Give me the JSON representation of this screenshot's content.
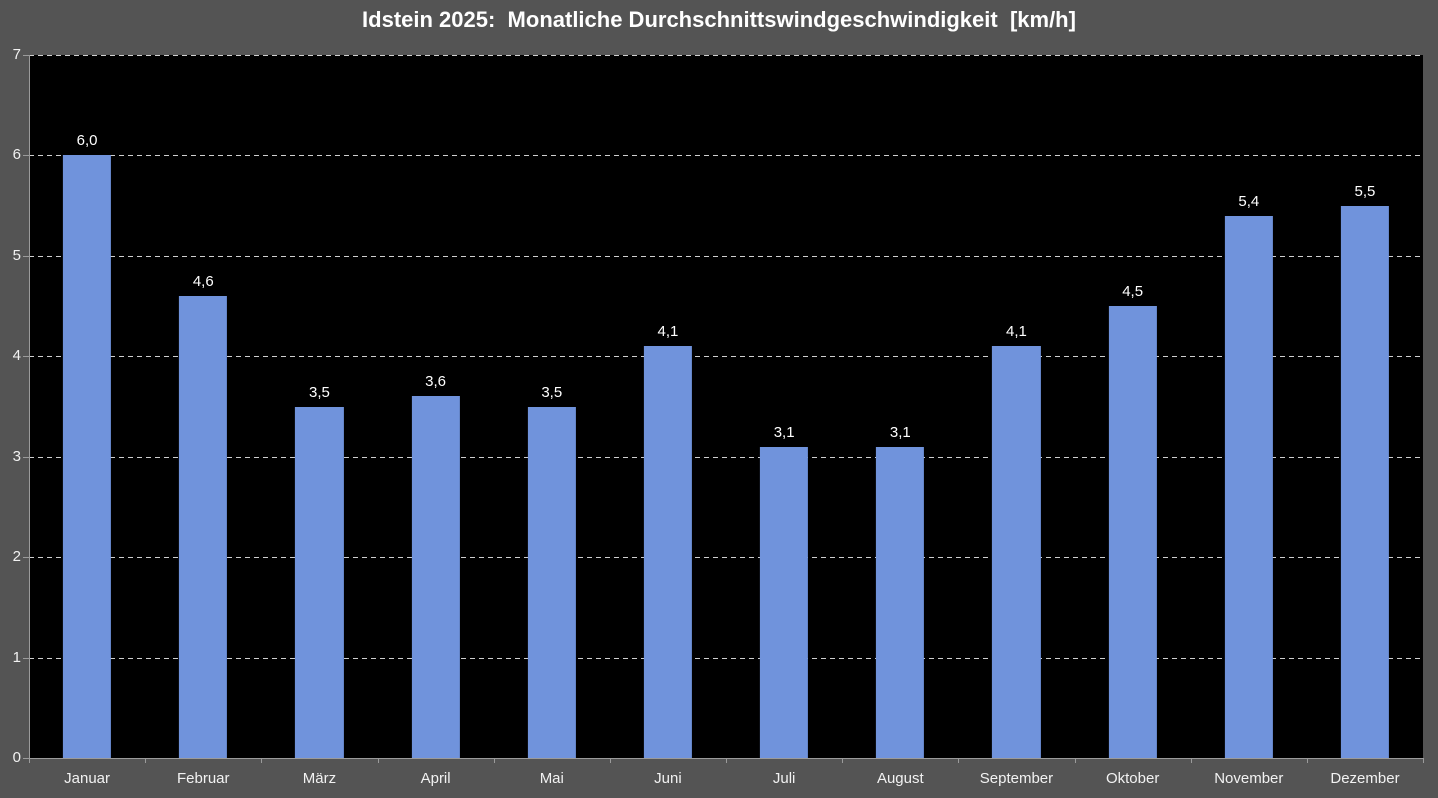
{
  "chart_data": {
    "type": "bar",
    "title": "Idstein 2025:  Monatliche Durchschnittswindgeschwindigkeit  [km/h]",
    "categories": [
      "Januar",
      "Februar",
      "März",
      "April",
      "Mai",
      "Juni",
      "Juli",
      "August",
      "September",
      "Oktober",
      "November",
      "Dezember"
    ],
    "values": [
      6.0,
      4.6,
      3.5,
      3.6,
      3.5,
      4.1,
      3.1,
      3.1,
      4.1,
      4.5,
      5.4,
      5.5
    ],
    "value_labels": [
      "6,0",
      "4,6",
      "3,5",
      "3,6",
      "3,5",
      "4,1",
      "3,1",
      "3,1",
      "4,1",
      "4,5",
      "5,4",
      "5,5"
    ],
    "xlabel": "",
    "ylabel": "",
    "ylim": [
      0,
      7
    ],
    "yticks": [
      0,
      1,
      2,
      3,
      4,
      5,
      6,
      7
    ],
    "grid": "horizontal-dashed",
    "legend": "none",
    "colors": {
      "bar": "#7093DC",
      "background": "#545454",
      "plot_background": "#000000",
      "gridline": "#cfcfcf",
      "axis_line": "#9b9b9b",
      "text": "#ffffff"
    }
  }
}
